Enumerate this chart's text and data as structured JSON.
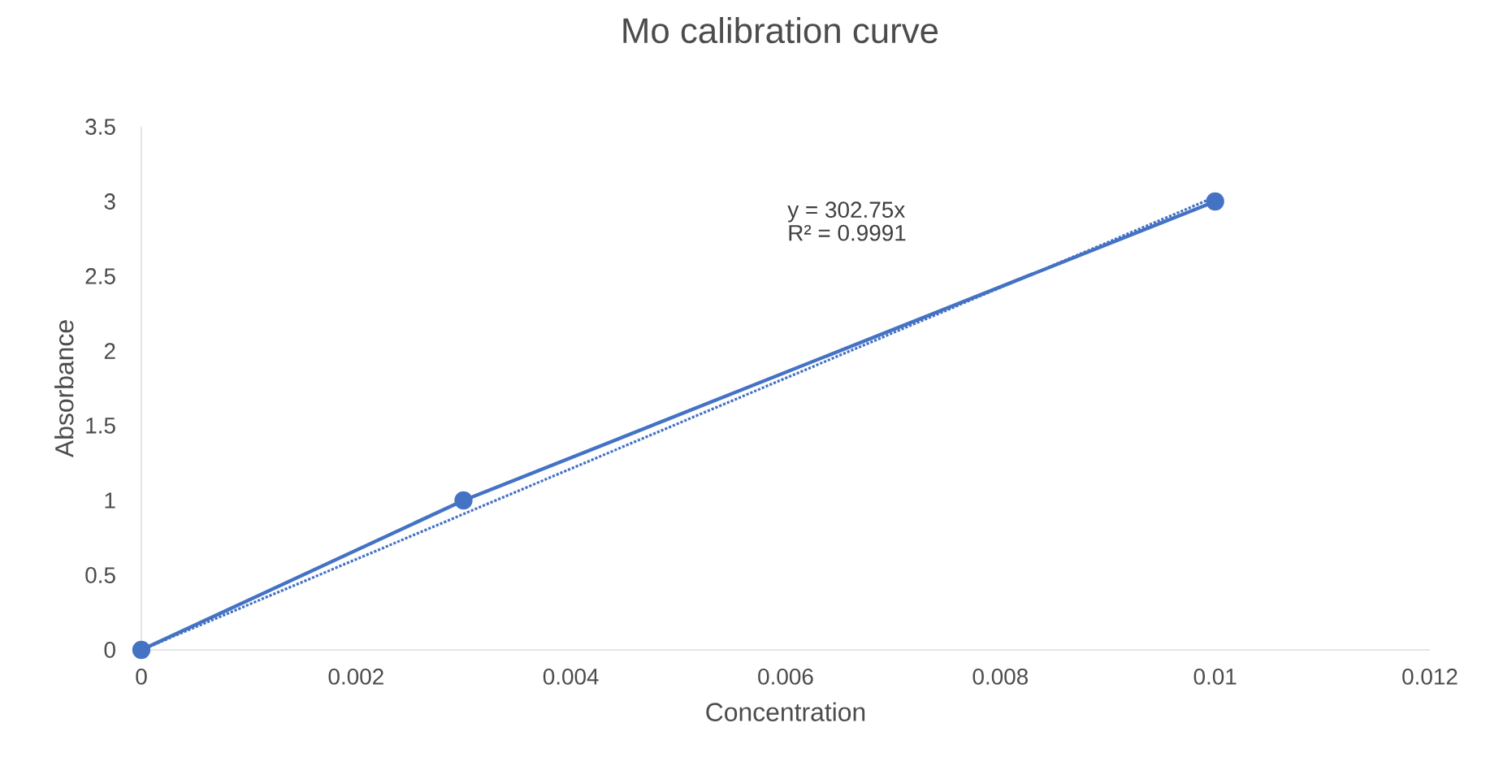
{
  "chart_data": {
    "type": "line",
    "title": "Mo calibration curve",
    "xlabel": "Concentration",
    "ylabel": "Absorbance",
    "series": [
      {
        "color": "#4472c4",
        "x": [
          0,
          0.003,
          0.01
        ],
        "values": [
          0,
          1,
          3
        ],
        "marker": "circle",
        "line_style": "solid"
      },
      {
        "color": "#4472c4",
        "x": [
          0,
          0.01
        ],
        "values": [
          0,
          3.03
        ],
        "marker": "none",
        "line_style": "dotted"
      }
    ],
    "xlim": [
      0,
      0.012
    ],
    "xticks": [
      0,
      0.002,
      0.004,
      0.006,
      0.008,
      0.01,
      0.012
    ],
    "ylim": [
      0,
      3.5
    ],
    "yticks": [
      0,
      0.5,
      1,
      1.5,
      2,
      2.5,
      3,
      3.5
    ],
    "annotations": [
      "y = 302.75x",
      "R² = 0.9991"
    ]
  }
}
